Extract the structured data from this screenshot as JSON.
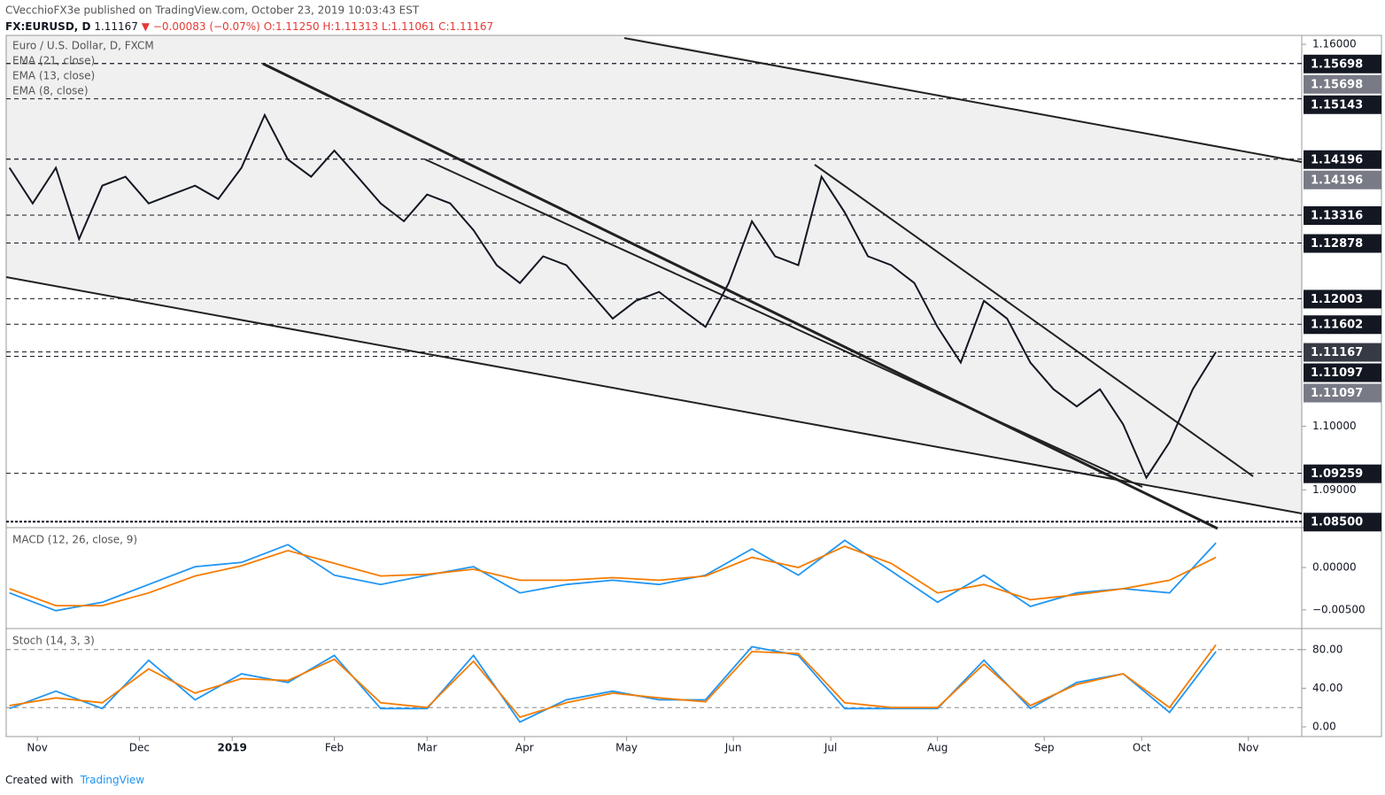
{
  "header": {
    "publisher": "CVecchioFX3e published on TradingView.com, October 23, 2019 10:03:43 EST",
    "symbol": "FX:EURUSD, D",
    "last": "1.11167",
    "arrow": "▼",
    "change": "−0.00083 (−0.07%)",
    "ohlc": "O:1.11250 H:1.11313 L:1.11061 C:1.11167"
  },
  "footer": {
    "created": "Created with",
    "brand": "TradingView"
  },
  "chart_data": [
    {
      "type": "line",
      "indicators": [
        "EMA (21, close)",
        "EMA (13, close)",
        "EMA (8, close)"
      ],
      "x": [
        -6,
        -1,
        4,
        9,
        14,
        19,
        24,
        29,
        34,
        39,
        44,
        49,
        54,
        59,
        64,
        69,
        74,
        79,
        84,
        89,
        94,
        99,
        104,
        109,
        114,
        119,
        124,
        129,
        134,
        139,
        144,
        149,
        154,
        159,
        164,
        169,
        174,
        179,
        184,
        189,
        194,
        199,
        204,
        209,
        214,
        219,
        224,
        229,
        234,
        239,
        244,
        249,
        254
      ],
      "series": [
        {
          "name": "Euro / U.S. Dollar, D, FXCM",
          "color": "#131722",
          "values": [
            1.1406,
            1.135,
            1.1406,
            1.1294,
            1.1378,
            1.1392,
            1.135,
            1.1364,
            1.1378,
            1.1357,
            1.1406,
            1.1489,
            1.1419,
            1.1392,
            1.1433,
            1.1392,
            1.135,
            1.1322,
            1.1364,
            1.135,
            1.1308,
            1.1253,
            1.1225,
            1.1267,
            1.1253,
            1.1211,
            1.1169,
            1.1197,
            1.1211,
            1.1183,
            1.1156,
            1.1225,
            1.1322,
            1.1267,
            1.1253,
            1.1392,
            1.1336,
            1.1267,
            1.1253,
            1.1225,
            1.1156,
            1.11,
            1.1197,
            1.1169,
            1.11,
            1.1058,
            1.1031,
            1.1058,
            1.1003,
            1.0919,
            1.0975,
            1.1058,
            1.11167
          ]
        }
      ],
      "xlim": [
        -6.7,
        272.5
      ],
      "ylim": [
        1.0842,
        1.1614
      ],
      "yticks": [
        {
          "value": 1.16,
          "label": "1.16000"
        },
        {
          "value": 1.1,
          "label": "1.10000"
        },
        {
          "value": 1.09,
          "label": "1.09000"
        }
      ],
      "levels": [
        {
          "value": 1.15698,
          "color": "#131722"
        },
        {
          "value": 1.15698,
          "color": "#787b86"
        },
        {
          "value": 1.15143,
          "color": "#131722"
        },
        {
          "value": 1.14196,
          "color": "#131722"
        },
        {
          "value": 1.14196,
          "color": "#787b86"
        },
        {
          "value": 1.13316,
          "color": "#131722"
        },
        {
          "value": 1.12878,
          "color": "#131722"
        },
        {
          "value": 1.12003,
          "color": "#131722"
        },
        {
          "value": 1.11602,
          "color": "#131722"
        },
        {
          "value": 1.11167,
          "color": "#363a45"
        },
        {
          "value": 1.11097,
          "color": "#131722"
        },
        {
          "value": 1.11097,
          "color": "#787b86"
        },
        {
          "value": 1.09259,
          "color": "#131722"
        },
        {
          "value": 1.085,
          "label": "1.08500",
          "color": "#131722"
        }
      ]
    },
    {
      "type": "line",
      "title": "MACD (12, 26, close, 9)",
      "x": [
        -6,
        4,
        14,
        24,
        34,
        44,
        54,
        64,
        74,
        84,
        94,
        104,
        114,
        124,
        134,
        144,
        154,
        164,
        174,
        184,
        194,
        204,
        214,
        224,
        234,
        244,
        254
      ],
      "series": [
        {
          "color": "#2196f3",
          "values": [
            -0.003,
            -0.0051,
            -0.0041,
            -0.002,
            0.0001,
            0.0006,
            0.0027,
            -0.0009,
            -0.002,
            -0.0009,
            0.0001,
            -0.003,
            -0.002,
            -0.0015,
            -0.002,
            -0.0009,
            0.0022,
            -0.0009,
            0.0032,
            -0.0004,
            -0.0041,
            -0.0009,
            -0.0046,
            -0.003,
            -0.0025,
            -0.003,
            0.0029
          ]
        },
        {
          "color": "#f57c00",
          "values": [
            -0.0025,
            -0.0045,
            -0.0045,
            -0.003,
            -0.001,
            0.0002,
            0.002,
            0.0005,
            -0.001,
            -0.0008,
            -0.0002,
            -0.0015,
            -0.0015,
            -0.0012,
            -0.0015,
            -0.001,
            0.0012,
            0.0,
            0.0025,
            0.0005,
            -0.003,
            -0.002,
            -0.0038,
            -0.0032,
            -0.0025,
            -0.0015,
            0.0012
          ]
        }
      ],
      "xlim": [
        -6.7,
        272.5
      ],
      "ylim": [
        -0.007,
        0.0045
      ],
      "yticks": [
        {
          "value": 0,
          "label": "0.00000"
        },
        {
          "value": -0.005,
          "label": "−0.00500"
        }
      ]
    },
    {
      "type": "line",
      "title": "Stoch (14, 3, 3)",
      "x": [
        -6,
        4,
        14,
        24,
        34,
        44,
        54,
        64,
        74,
        84,
        94,
        104,
        114,
        124,
        134,
        144,
        154,
        164,
        174,
        184,
        194,
        204,
        214,
        224,
        234,
        244,
        254
      ],
      "series": [
        {
          "color": "#2196f3",
          "values": [
            19,
            37,
            19,
            69,
            28,
            55,
            46,
            74,
            19,
            19,
            74,
            5,
            28,
            37,
            28,
            28,
            83,
            74,
            19,
            19,
            19,
            69,
            19,
            46,
            55,
            15,
            78
          ]
        },
        {
          "color": "#f57c00",
          "values": [
            22,
            30,
            25,
            60,
            35,
            50,
            48,
            70,
            25,
            20,
            68,
            10,
            25,
            35,
            30,
            26,
            78,
            76,
            25,
            20,
            20,
            65,
            22,
            44,
            55,
            20,
            85
          ]
        }
      ],
      "bands": [
        80,
        20
      ],
      "xlim": [
        -6.7,
        272.5
      ],
      "ylim": [
        -6.4,
        100
      ],
      "yticks": [
        {
          "value": 80,
          "label": "80.00"
        },
        {
          "value": 40,
          "label": "40.00"
        },
        {
          "value": 0,
          "label": "0.00"
        }
      ],
      "xticks": [
        {
          "value": 0,
          "label": "Nov"
        },
        {
          "value": 22,
          "label": "Dec"
        },
        {
          "value": 42,
          "label": "2019"
        },
        {
          "value": 64,
          "label": "Feb"
        },
        {
          "value": 84,
          "label": "Mar"
        },
        {
          "value": 105,
          "label": "Apr"
        },
        {
          "value": 127,
          "label": "May"
        },
        {
          "value": 150,
          "label": "Jun"
        },
        {
          "value": 171,
          "label": "Jul"
        },
        {
          "value": 194,
          "label": "Aug"
        },
        {
          "value": 217,
          "label": "Sep"
        },
        {
          "value": 238,
          "label": "Oct"
        },
        {
          "value": 261,
          "label": "Nov"
        }
      ]
    }
  ]
}
